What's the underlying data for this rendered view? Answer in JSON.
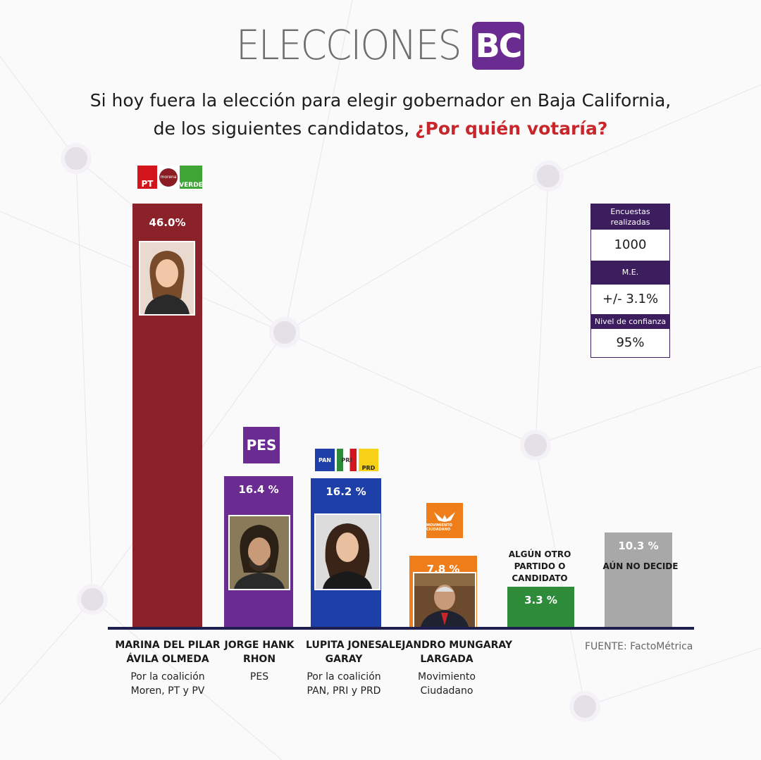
{
  "brand": {
    "word": "ELECCIONES",
    "badge": "BC"
  },
  "question": {
    "line1": "Si hoy fuera la elección para elegir gobernador en Baja California,",
    "line2": "de los siguientes candidatos,",
    "highlight": "¿Por quién votaría?"
  },
  "info_box": {
    "surveys_label": "Encuestas realizadas",
    "surveys_value": "1000",
    "me_label": "M.E.",
    "me_value": "+/- 3.1%",
    "confidence_label": "Nivel de confianza",
    "confidence_value": "95%"
  },
  "source": "FUENTE: FactoMétrica",
  "logos": {
    "pt": "PT",
    "morena": "morena",
    "verde": "VERDE",
    "pes": "PES",
    "pan": "PAN",
    "pri": "PRI",
    "prd": "PRD",
    "mc": "MOVIMIENTO CIUDADANO"
  },
  "colors": {
    "avila": "#8b2129",
    "hank": "#6a2c91",
    "jones": "#1f3fa8",
    "mungaray": "#ef7d1a",
    "otro": "#2e8b3a",
    "nodecide": "#a8a8a8",
    "accent": "#6a2c91",
    "red": "#c8262b"
  },
  "chart_data": {
    "type": "bar",
    "categories": [
      "MARINA DEL PILAR ÁVILA OLMEDA",
      "JORGE HANK RHON",
      "LUPITA JONES GARAY",
      "ALEJANDRO MUNGARAY LARGADA",
      "ALGÚN OTRO PARTIDO O CANDIDATO",
      "AÚN NO DECIDE"
    ],
    "values": [
      46.0,
      16.4,
      16.2,
      7.8,
      3.3,
      10.3
    ],
    "value_labels": [
      "46.0%",
      "16.4 %",
      "16.2 %",
      "7.8 %",
      "3.3 %",
      "10.3 %"
    ],
    "ylim": [
      0,
      46
    ]
  },
  "candidates": [
    {
      "name1": "MARINA DEL PILAR",
      "name2": "ÁVILA OLMEDA",
      "party1": "Por la coalición",
      "party2": "Moren, PT y PV"
    },
    {
      "name1": "JORGE HANK",
      "name2": "RHON",
      "party1": "PES",
      "party2": ""
    },
    {
      "name1": "LUPITA JONES",
      "name2": "GARAY",
      "party1": "Por la coalición",
      "party2": "PAN, PRI y PRD"
    },
    {
      "name1": "ALEJANDRO MUNGARAY",
      "name2": "LARGADA",
      "party1": "Movimiento",
      "party2": "Ciudadano"
    }
  ],
  "other_labels": {
    "otro1": "ALGÚN OTRO",
    "otro2": "PARTIDO O CANDIDATO",
    "nodecide": "AÚN NO DECIDE"
  }
}
